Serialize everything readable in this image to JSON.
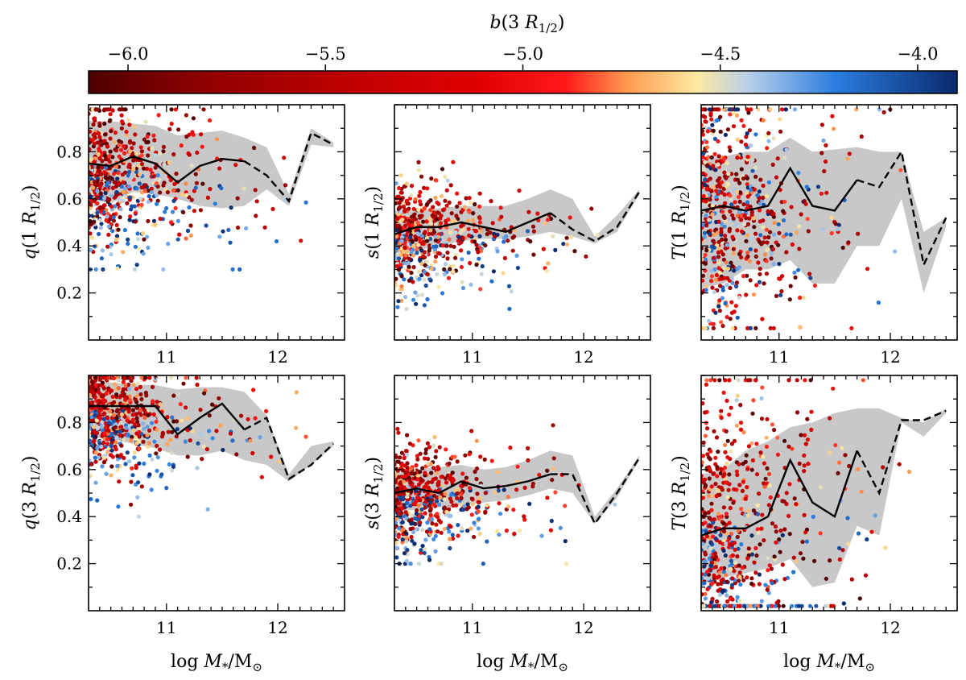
{
  "colorbar": {
    "label_symbol": "b",
    "label_arg": "(3 ",
    "label_R": "R",
    "label_sub": "1/2",
    "label_close": ")",
    "vmin": -6.1,
    "vmax": -3.9,
    "ticks": [
      -6.0,
      -5.5,
      -5.0,
      -4.5,
      -4.0
    ],
    "tick_labels": [
      "−6.0",
      "−5.5",
      "−5.0",
      "−4.5",
      "−4.0"
    ],
    "colors": [
      "#4d0000",
      "#8b0000",
      "#c00000",
      "#e00000",
      "#ff1a1a",
      "#ff9a50",
      "#fde9a0",
      "#b9cfe9",
      "#2a7ddf",
      "#0a2a6e"
    ],
    "stops": [
      0.0,
      0.12,
      0.3,
      0.45,
      0.55,
      0.62,
      0.7,
      0.76,
      0.86,
      1.0
    ]
  },
  "chart_data": [
    {
      "type": "scatter",
      "id": "q1",
      "ylabel": "q(1 R1/2)",
      "ylabel_symbol": "q",
      "ylabel_arg": "(1 ",
      "xlabel": "",
      "xlim": [
        10.3,
        12.6
      ],
      "ylim": [
        0.0,
        1.0
      ],
      "yticks": [
        0.2,
        0.4,
        0.6,
        0.8
      ],
      "ytick_labels": [
        "0.2",
        "0.4",
        "0.6",
        "0.8"
      ],
      "xticks": [
        11,
        12
      ],
      "xtick_labels": [
        "11",
        "12"
      ],
      "median_solid": {
        "x": [
          10.3,
          10.5,
          10.7,
          10.9,
          11.1,
          11.3,
          11.5,
          11.7
        ],
        "y": [
          0.75,
          0.74,
          0.78,
          0.75,
          0.67,
          0.74,
          0.77,
          0.76
        ]
      },
      "median_dashed": {
        "x": [
          11.7,
          11.9,
          12.1,
          12.3,
          12.5
        ],
        "y": [
          0.76,
          0.7,
          0.59,
          0.88,
          0.83
        ]
      },
      "band_upper": [
        0.93,
        0.93,
        0.92,
        0.91,
        0.87,
        0.88,
        0.89,
        0.86,
        0.82,
        0.62,
        0.9,
        0.84
      ],
      "band_lower": [
        0.6,
        0.58,
        0.63,
        0.62,
        0.6,
        0.57,
        0.56,
        0.57,
        0.64,
        0.57,
        0.83,
        0.82
      ],
      "band_x": [
        10.3,
        10.5,
        10.7,
        10.9,
        11.1,
        11.3,
        11.5,
        11.7,
        11.9,
        12.1,
        12.3,
        12.5
      ],
      "scatter": {
        "n": 650,
        "y_center": 0.72,
        "y_spread": 0.14,
        "y_min": 0.3,
        "y_max": 0.98,
        "trend": -0.05,
        "blue_low": true,
        "seed": 11
      }
    },
    {
      "type": "scatter",
      "id": "s1",
      "ylabel": "s(1 R1/2)",
      "ylabel_symbol": "s",
      "ylabel_arg": "(1 ",
      "xlabel": "",
      "xlim": [
        10.3,
        12.6
      ],
      "ylim": [
        0.0,
        1.0
      ],
      "yticks": [
        0.2,
        0.4,
        0.6,
        0.8
      ],
      "ytick_labels": [],
      "xticks": [
        11,
        12
      ],
      "xtick_labels": [
        "11",
        "12"
      ],
      "median_solid": {
        "x": [
          10.3,
          10.5,
          10.7,
          10.9,
          11.1,
          11.3,
          11.5,
          11.7
        ],
        "y": [
          0.45,
          0.48,
          0.48,
          0.5,
          0.48,
          0.46,
          0.5,
          0.54
        ]
      },
      "median_dashed": {
        "x": [
          11.7,
          11.9,
          12.1,
          12.3,
          12.5
        ],
        "y": [
          0.54,
          0.47,
          0.42,
          0.48,
          0.63
        ]
      },
      "band_upper": [
        0.55,
        0.55,
        0.56,
        0.57,
        0.57,
        0.57,
        0.6,
        0.64,
        0.6,
        0.44,
        0.53,
        0.64
      ],
      "band_lower": [
        0.37,
        0.38,
        0.4,
        0.42,
        0.43,
        0.43,
        0.44,
        0.46,
        0.44,
        0.41,
        0.46,
        0.62
      ],
      "band_x": [
        10.3,
        10.5,
        10.7,
        10.9,
        11.1,
        11.3,
        11.5,
        11.7,
        11.9,
        12.1,
        12.3,
        12.5
      ],
      "scatter": {
        "n": 650,
        "y_center": 0.47,
        "y_spread": 0.1,
        "y_min": 0.13,
        "y_max": 0.83,
        "trend": 0.0,
        "blue_low": true,
        "seed": 23
      }
    },
    {
      "type": "scatter",
      "id": "T1",
      "ylabel": "T(1 R1/2)",
      "ylabel_symbol": "T",
      "ylabel_arg": "(1 ",
      "xlabel": "",
      "xlim": [
        10.3,
        12.6
      ],
      "ylim": [
        0.0,
        1.0
      ],
      "yticks": [
        0.2,
        0.4,
        0.6,
        0.8
      ],
      "ytick_labels": [],
      "xticks": [
        11,
        12
      ],
      "xtick_labels": [
        "11",
        "12"
      ],
      "median_solid": {
        "x": [
          10.3,
          10.5,
          10.7,
          10.9,
          11.1,
          11.3,
          11.5,
          11.7
        ],
        "y": [
          0.55,
          0.57,
          0.55,
          0.57,
          0.73,
          0.57,
          0.55,
          0.68
        ]
      },
      "median_dashed": {
        "x": [
          11.7,
          11.9,
          12.1,
          12.3,
          12.5
        ],
        "y": [
          0.68,
          0.65,
          0.8,
          0.32,
          0.52
        ]
      },
      "band_upper": [
        0.78,
        0.78,
        0.8,
        0.8,
        0.86,
        0.8,
        0.81,
        0.82,
        0.8,
        0.8,
        0.46,
        0.52
      ],
      "band_lower": [
        0.22,
        0.24,
        0.3,
        0.3,
        0.34,
        0.24,
        0.24,
        0.4,
        0.4,
        0.6,
        0.2,
        0.48
      ],
      "band_x": [
        10.3,
        10.5,
        10.7,
        10.9,
        11.1,
        11.3,
        11.5,
        11.7,
        11.9,
        12.1,
        12.3,
        12.5
      ],
      "scatter": {
        "n": 650,
        "y_center": 0.55,
        "y_spread": 0.26,
        "y_min": 0.05,
        "y_max": 0.98,
        "trend": 0.0,
        "blue_low": false,
        "seed": 37
      }
    },
    {
      "type": "scatter",
      "id": "q3",
      "ylabel": "q(3 R1/2)",
      "ylabel_symbol": "q",
      "ylabel_arg": "(3 ",
      "xlabel": "log M*/M⊙",
      "xlim": [
        10.3,
        12.6
      ],
      "ylim": [
        0.0,
        1.0
      ],
      "yticks": [
        0.2,
        0.4,
        0.6,
        0.8
      ],
      "ytick_labels": [
        "0.2",
        "0.4",
        "0.6",
        "0.8"
      ],
      "xticks": [
        11,
        12
      ],
      "xtick_labels": [
        "11",
        "12"
      ],
      "median_solid": {
        "x": [
          10.3,
          10.5,
          10.7,
          10.9,
          11.1,
          11.3,
          11.5,
          11.7
        ],
        "y": [
          0.87,
          0.87,
          0.87,
          0.87,
          0.75,
          0.82,
          0.88,
          0.77
        ]
      },
      "median_dashed": {
        "x": [
          11.7,
          11.9,
          12.1,
          12.3,
          12.5
        ],
        "y": [
          0.77,
          0.82,
          0.56,
          0.62,
          0.71
        ]
      },
      "band_upper": [
        0.97,
        0.97,
        0.96,
        0.96,
        0.94,
        0.95,
        0.95,
        0.93,
        0.83,
        0.58,
        0.7,
        0.72
      ],
      "band_lower": [
        0.74,
        0.73,
        0.71,
        0.69,
        0.66,
        0.66,
        0.68,
        0.64,
        0.62,
        0.55,
        0.62,
        0.7
      ],
      "band_x": [
        10.3,
        10.5,
        10.7,
        10.9,
        11.1,
        11.3,
        11.5,
        11.7,
        11.9,
        12.1,
        12.3,
        12.5
      ],
      "scatter": {
        "n": 650,
        "y_center": 0.84,
        "y_spread": 0.12,
        "y_min": 0.4,
        "y_max": 0.99,
        "trend": -0.05,
        "blue_low": true,
        "seed": 53
      }
    },
    {
      "type": "scatter",
      "id": "s3",
      "ylabel": "s(3 R1/2)",
      "ylabel_symbol": "s",
      "ylabel_arg": "(3 ",
      "xlabel": "log M*/M⊙",
      "xlim": [
        10.3,
        12.6
      ],
      "ylim": [
        0.0,
        1.0
      ],
      "yticks": [
        0.2,
        0.4,
        0.6,
        0.8
      ],
      "ytick_labels": [],
      "xticks": [
        11,
        12
      ],
      "xtick_labels": [
        "11",
        "12"
      ],
      "median_solid": {
        "x": [
          10.3,
          10.5,
          10.7,
          10.9,
          11.1,
          11.3,
          11.5,
          11.7
        ],
        "y": [
          0.5,
          0.52,
          0.5,
          0.55,
          0.52,
          0.53,
          0.55,
          0.58
        ]
      },
      "median_dashed": {
        "x": [
          11.7,
          11.9,
          12.1,
          12.3,
          12.5
        ],
        "y": [
          0.58,
          0.58,
          0.37,
          0.5,
          0.65
        ]
      },
      "band_upper": [
        0.59,
        0.6,
        0.61,
        0.62,
        0.6,
        0.61,
        0.64,
        0.68,
        0.66,
        0.4,
        0.52,
        0.66
      ],
      "band_lower": [
        0.42,
        0.43,
        0.44,
        0.45,
        0.46,
        0.47,
        0.49,
        0.52,
        0.5,
        0.37,
        0.48,
        0.64
      ],
      "band_x": [
        10.3,
        10.5,
        10.7,
        10.9,
        11.1,
        11.3,
        11.5,
        11.7,
        11.9,
        12.1,
        12.3,
        12.5
      ],
      "scatter": {
        "n": 650,
        "y_center": 0.52,
        "y_spread": 0.1,
        "y_min": 0.2,
        "y_max": 0.92,
        "trend": 0.0,
        "blue_low": true,
        "seed": 71
      }
    },
    {
      "type": "scatter",
      "id": "T3",
      "ylabel": "T(3 R1/2)",
      "ylabel_symbol": "T",
      "ylabel_arg": "(3 ",
      "xlabel": "log M*/M⊙",
      "xlim": [
        10.3,
        12.6
      ],
      "ylim": [
        0.0,
        1.0
      ],
      "yticks": [
        0.2,
        0.4,
        0.6,
        0.8
      ],
      "ytick_labels": [],
      "xticks": [
        11,
        12
      ],
      "xtick_labels": [
        "11",
        "12"
      ],
      "median_solid": {
        "x": [
          10.3,
          10.5,
          10.7,
          10.9,
          11.1,
          11.3,
          11.5,
          11.7
        ],
        "y": [
          0.32,
          0.35,
          0.35,
          0.4,
          0.64,
          0.46,
          0.4,
          0.68
        ]
      },
      "median_dashed": {
        "x": [
          11.7,
          11.9,
          12.1,
          12.3,
          12.5
        ],
        "y": [
          0.68,
          0.5,
          0.81,
          0.81,
          0.85
        ]
      },
      "band_upper": [
        0.58,
        0.6,
        0.68,
        0.72,
        0.78,
        0.8,
        0.84,
        0.86,
        0.86,
        0.82,
        0.8,
        0.86
      ],
      "band_lower": [
        0.12,
        0.14,
        0.16,
        0.18,
        0.22,
        0.1,
        0.12,
        0.36,
        0.32,
        0.8,
        0.74,
        0.84
      ],
      "band_x": [
        10.3,
        10.5,
        10.7,
        10.9,
        11.1,
        11.3,
        11.5,
        11.7,
        11.9,
        12.1,
        12.3,
        12.5
      ],
      "scatter": {
        "n": 650,
        "y_center": 0.42,
        "y_spread": 0.28,
        "y_min": 0.02,
        "y_max": 0.98,
        "trend": 0.1,
        "blue_low": true,
        "seed": 89
      }
    }
  ],
  "xlabel_parts": {
    "log": "log ",
    "M": "M",
    "star": "*",
    "slash": "/M",
    "sun": "⊙"
  },
  "r_half": {
    "R": "R",
    "sub": "1/2",
    "close": ")"
  }
}
